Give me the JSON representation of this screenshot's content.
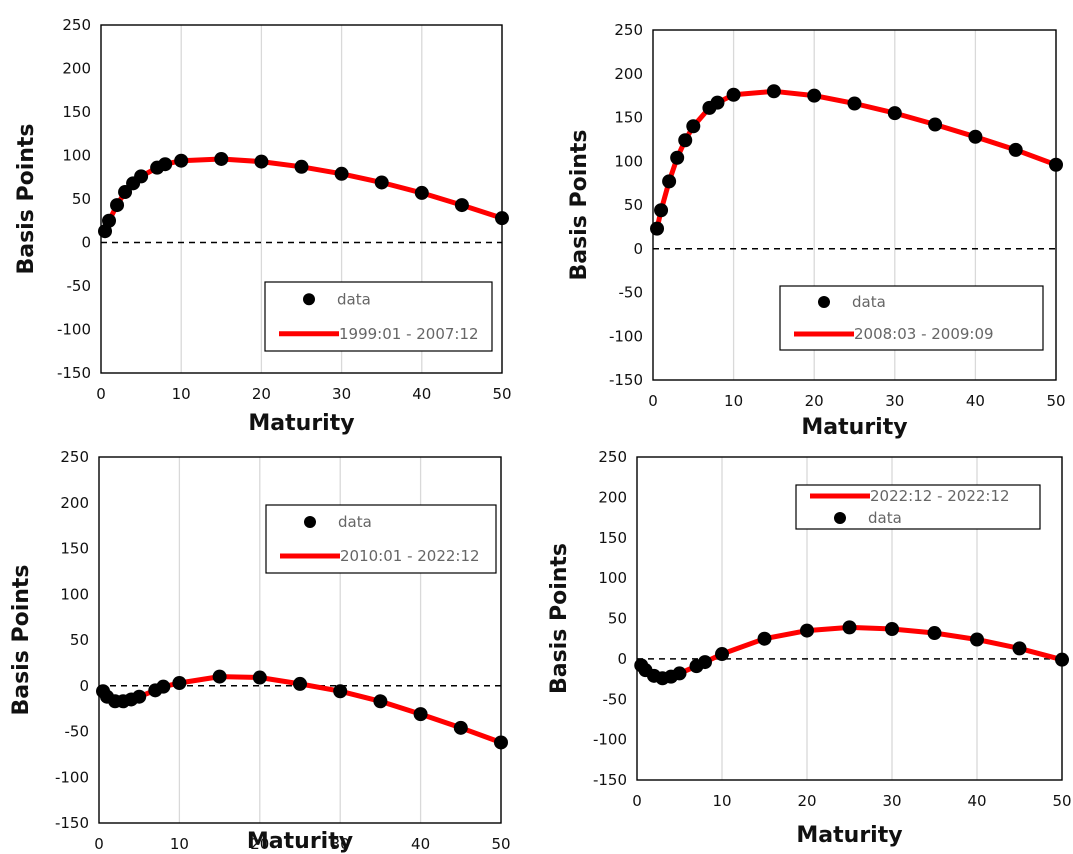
{
  "chart_data": [
    {
      "type": "line",
      "xlabel": "Maturity",
      "ylabel": "Basis Points",
      "xlim": [
        0,
        50
      ],
      "ylim": [
        -150,
        250
      ],
      "xticks": [
        0,
        10,
        20,
        30,
        40,
        50
      ],
      "yticks": [
        -150,
        -100,
        -50,
        0,
        50,
        100,
        150,
        200,
        250
      ],
      "grid": "vertical",
      "zero_line": "dashed",
      "legend": {
        "placement": "bottom-right",
        "order": [
          "data",
          "fit"
        ]
      },
      "series": [
        {
          "name": "data",
          "kind": "scatter",
          "color": "#000000",
          "x": [
            0.5,
            1,
            2,
            3,
            4,
            5,
            7,
            8,
            10,
            15,
            20,
            25,
            30,
            35,
            40,
            45,
            50
          ],
          "y": [
            13,
            25,
            43,
            58,
            68,
            76,
            86,
            90,
            94,
            96,
            93,
            87,
            79,
            69,
            57,
            43,
            28
          ]
        },
        {
          "name": "1999:01 - 2007:12",
          "kind": "line",
          "color": "#ff0000",
          "x": [
            0.5,
            1,
            2,
            3,
            4,
            5,
            7,
            8,
            10,
            15,
            20,
            25,
            30,
            35,
            40,
            45,
            50
          ],
          "y": [
            13,
            25,
            43,
            58,
            68,
            76,
            86,
            90,
            94,
            96,
            93,
            87,
            79,
            69,
            57,
            43,
            28
          ]
        }
      ]
    },
    {
      "type": "line",
      "xlabel": "Maturity",
      "ylabel": "Basis Points",
      "xlim": [
        0,
        50
      ],
      "ylim": [
        -150,
        250
      ],
      "xticks": [
        0,
        10,
        20,
        30,
        40,
        50
      ],
      "yticks": [
        -150,
        -100,
        -50,
        0,
        50,
        100,
        150,
        200,
        250
      ],
      "grid": "vertical",
      "zero_line": "dashed",
      "legend": {
        "placement": "bottom-right",
        "order": [
          "data",
          "fit"
        ]
      },
      "series": [
        {
          "name": "data",
          "kind": "scatter",
          "color": "#000000",
          "x": [
            0.5,
            1,
            2,
            3,
            4,
            5,
            7,
            8,
            10,
            15,
            20,
            25,
            30,
            35,
            40,
            45,
            50
          ],
          "y": [
            23,
            44,
            77,
            104,
            124,
            140,
            161,
            167,
            176,
            180,
            175,
            166,
            155,
            142,
            128,
            113,
            96
          ]
        },
        {
          "name": "2008:03 - 2009:09",
          "kind": "line",
          "color": "#ff0000",
          "x": [
            0.5,
            1,
            2,
            3,
            4,
            5,
            7,
            8,
            10,
            15,
            20,
            25,
            30,
            35,
            40,
            45,
            50
          ],
          "y": [
            23,
            44,
            77,
            104,
            124,
            140,
            161,
            167,
            176,
            180,
            175,
            166,
            155,
            142,
            128,
            113,
            96
          ]
        }
      ]
    },
    {
      "type": "line",
      "xlabel": "Maturity",
      "ylabel": "Basis Points",
      "xlim": [
        0,
        50
      ],
      "ylim": [
        -150,
        250
      ],
      "xticks": [
        0,
        10,
        20,
        30,
        40,
        50
      ],
      "yticks": [
        -150,
        -100,
        -50,
        0,
        50,
        100,
        150,
        200,
        250
      ],
      "grid": "vertical",
      "zero_line": "dashed",
      "legend": {
        "placement": "top-right",
        "order": [
          "data",
          "fit"
        ]
      },
      "series": [
        {
          "name": "data",
          "kind": "scatter",
          "color": "#000000",
          "x": [
            0.5,
            1,
            2,
            3,
            4,
            5,
            7,
            8,
            10,
            15,
            20,
            25,
            30,
            35,
            40,
            45,
            50
          ],
          "y": [
            -6,
            -12,
            -17,
            -17,
            -15,
            -12,
            -5,
            -1,
            3,
            10,
            9,
            2,
            -6,
            -17,
            -31,
            -46,
            -62
          ]
        },
        {
          "name": "2010:01 - 2022:12",
          "kind": "line",
          "color": "#ff0000",
          "x": [
            0.5,
            1,
            2,
            3,
            4,
            5,
            7,
            8,
            10,
            15,
            20,
            25,
            30,
            35,
            40,
            45,
            50
          ],
          "y": [
            -6,
            -12,
            -17,
            -17,
            -15,
            -12,
            -5,
            -1,
            3,
            10,
            9,
            2,
            -6,
            -17,
            -31,
            -46,
            -62
          ]
        }
      ]
    },
    {
      "type": "line",
      "xlabel": "Maturity",
      "ylabel": "Basis Points",
      "xlim": [
        0,
        50
      ],
      "ylim": [
        -150,
        250
      ],
      "xticks": [
        0,
        10,
        20,
        30,
        40,
        50
      ],
      "yticks": [
        -150,
        -100,
        -50,
        0,
        50,
        100,
        150,
        200,
        250
      ],
      "grid": "vertical",
      "zero_line": "dashed",
      "legend": {
        "placement": "top-right",
        "order": [
          "fit",
          "data"
        ]
      },
      "series": [
        {
          "name": "data",
          "kind": "scatter",
          "color": "#000000",
          "x": [
            0.5,
            1,
            2,
            3,
            4,
            5,
            7,
            8,
            10,
            15,
            20,
            25,
            30,
            35,
            40,
            45,
            50
          ],
          "y": [
            -8,
            -14,
            -21,
            -24,
            -22,
            -18,
            -9,
            -4,
            6,
            25,
            35,
            39,
            37,
            32,
            24,
            13,
            -1
          ]
        },
        {
          "name": "2022:12 - 2022:12",
          "kind": "line",
          "color": "#ff0000",
          "x": [
            0.5,
            1,
            2,
            3,
            4,
            5,
            7,
            8,
            10,
            15,
            20,
            25,
            30,
            35,
            40,
            45,
            50
          ],
          "y": [
            -8,
            -14,
            -21,
            -24,
            -22,
            -18,
            -9,
            -4,
            6,
            25,
            35,
            39,
            37,
            32,
            24,
            13,
            -1
          ]
        }
      ]
    }
  ]
}
